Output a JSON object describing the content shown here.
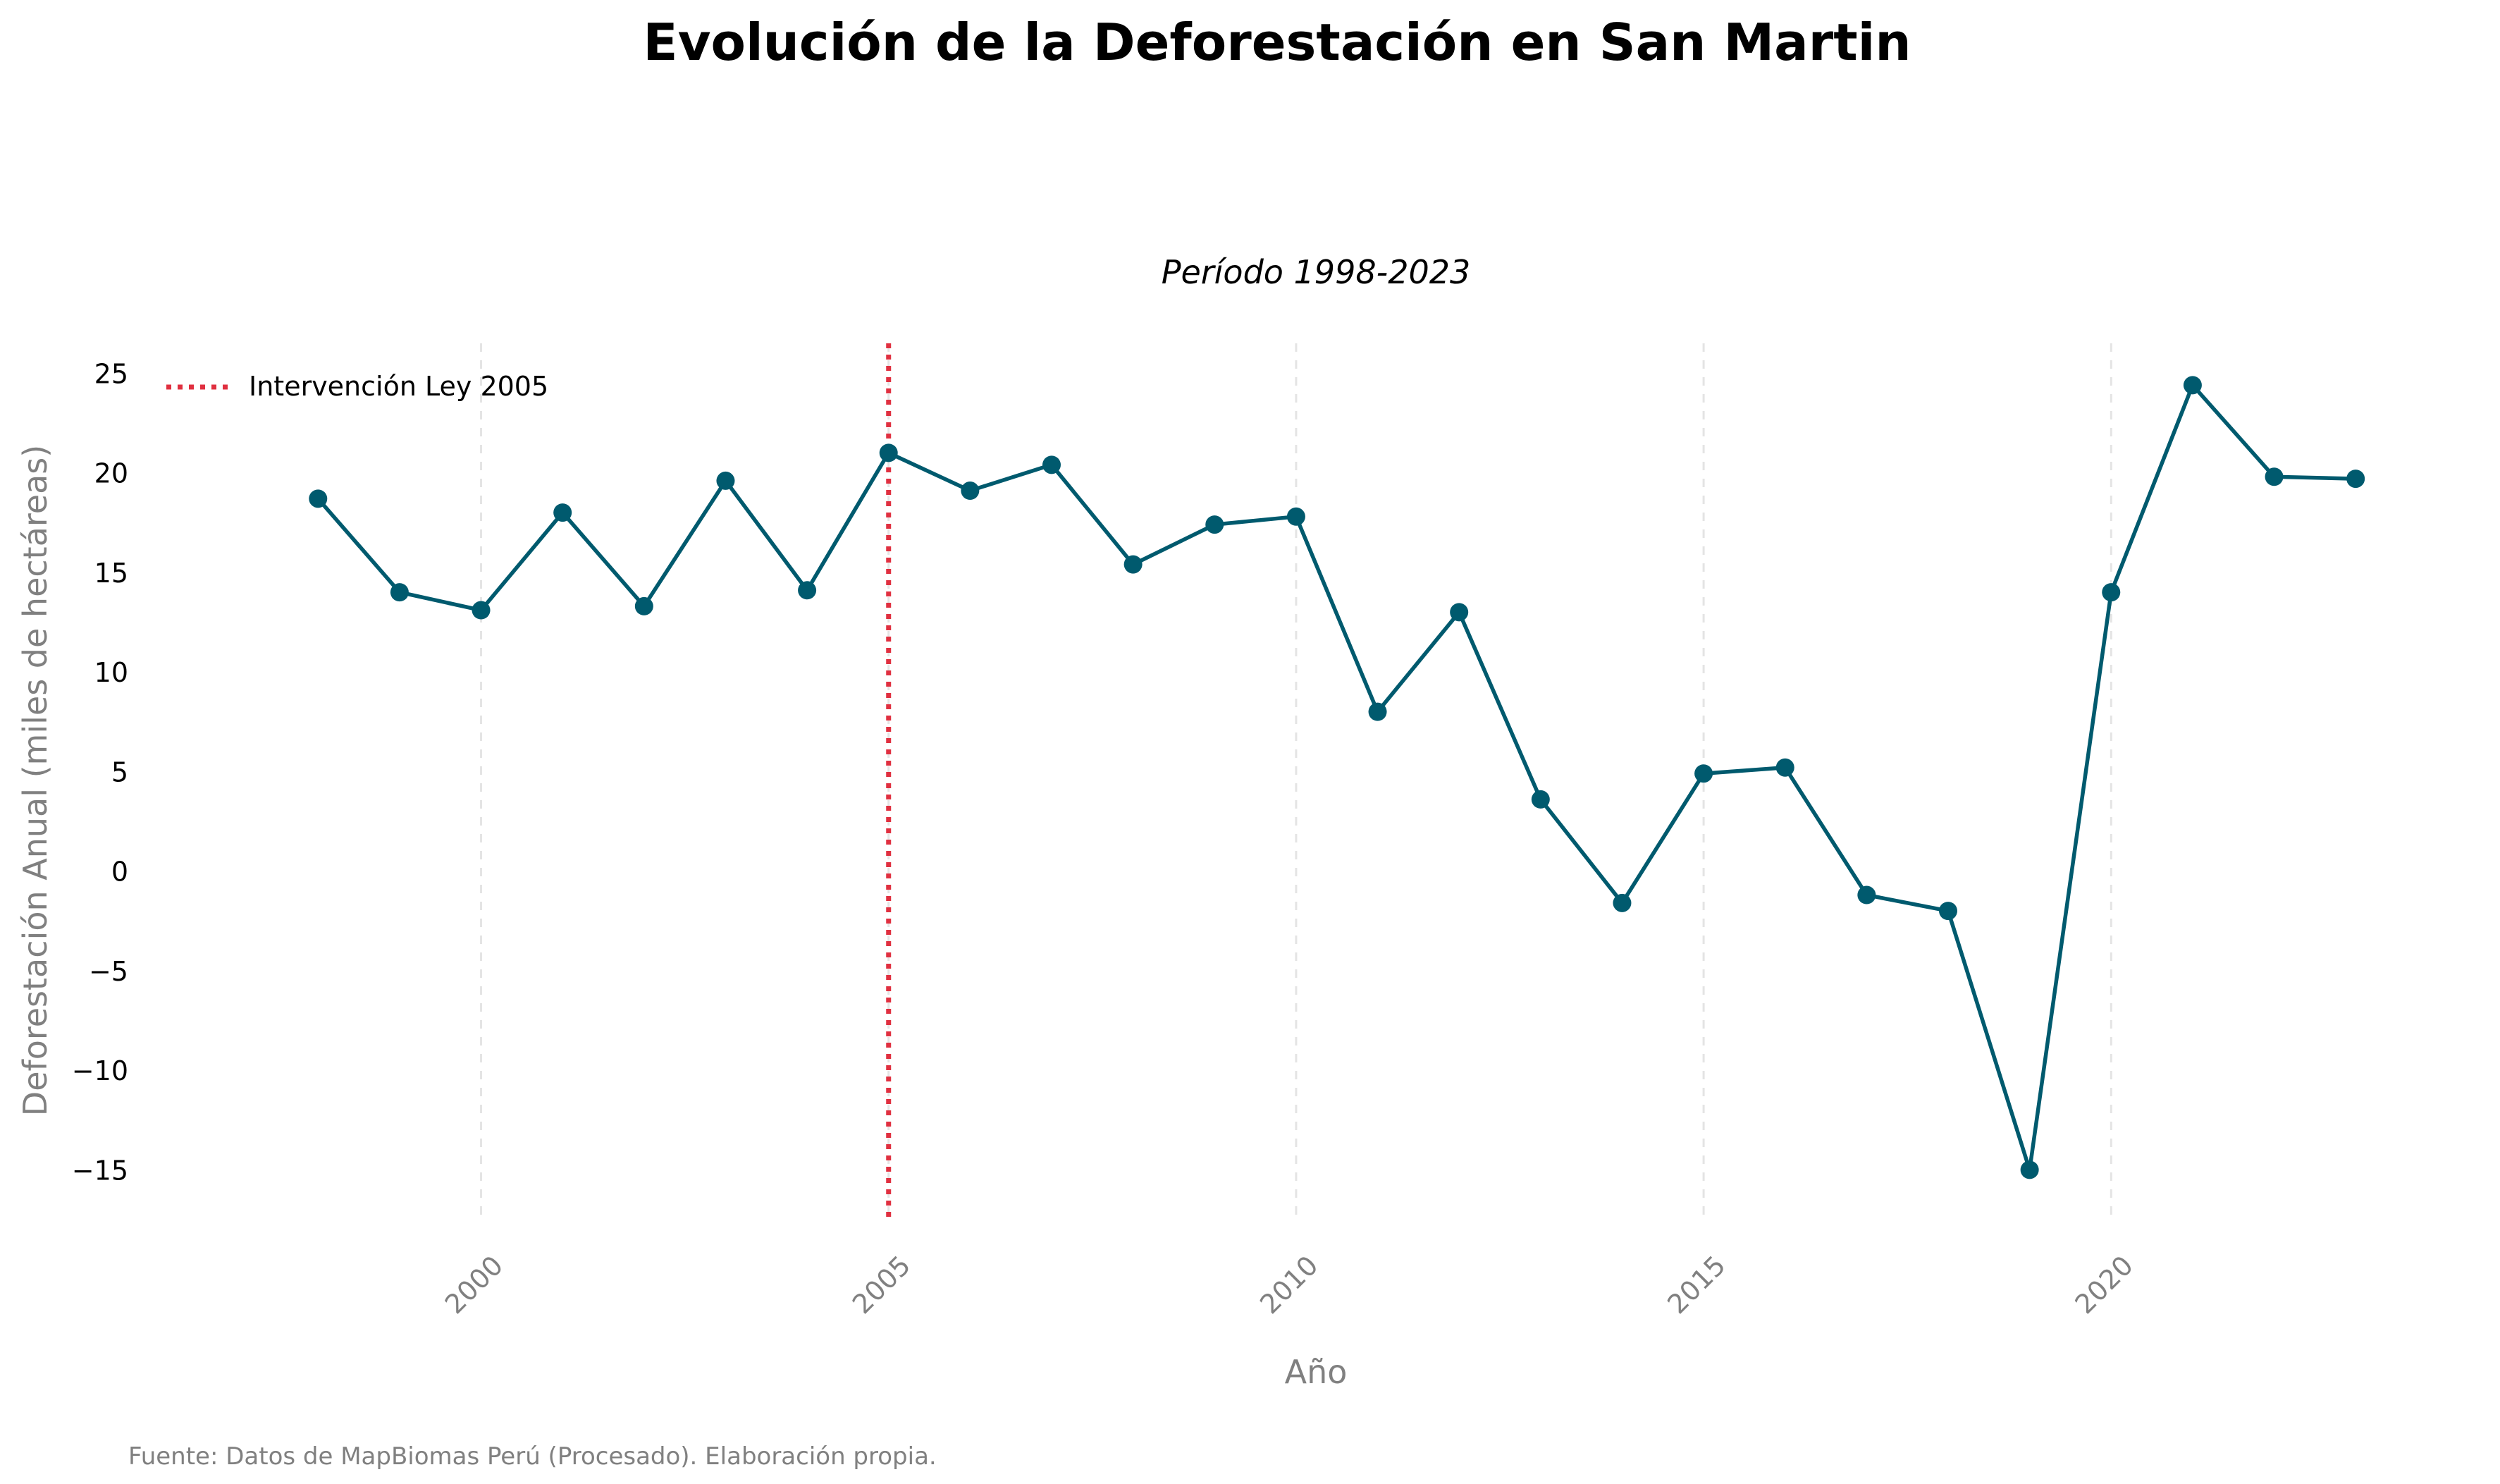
{
  "chart_data": {
    "type": "line",
    "title": "Evolución de la Deforestación en San Martin",
    "subtitle": "Período 1998-2023",
    "xlabel": "Año",
    "ylabel": "Deforestación Anual (miles de hectáreas)",
    "source_note": "Fuente: Datos de MapBiomas Perú (Procesado). Elaboración propia.",
    "xlim": [
      1996,
      2023.5
    ],
    "ylim": [
      -17.5,
      26.5
    ],
    "yticks": [
      -15,
      -10,
      -5,
      0,
      5,
      10,
      15,
      20,
      25
    ],
    "ytick_labels": [
      "−15",
      "−10",
      "−5",
      "0",
      "5",
      "10",
      "15",
      "20",
      "25"
    ],
    "xticks": [
      2000,
      2005,
      2010,
      2015,
      2020
    ],
    "xtick_labels": [
      "2000",
      "2005",
      "2010",
      "2015",
      "2020"
    ],
    "grid": "vertical dashed at x ticks",
    "legend_position": "top-left",
    "series": [
      {
        "color": "#005a6e",
        "x": [
          1998,
          1999,
          2000,
          2001,
          2002,
          2003,
          2004,
          2005,
          2006,
          2007,
          2008,
          2009,
          2010,
          2011,
          2012,
          2013,
          2014,
          2015,
          2016,
          2017,
          2018,
          2019,
          2020,
          2021,
          2022,
          2023
        ],
        "y": [
          18.7,
          14.0,
          13.1,
          18.0,
          13.3,
          19.6,
          14.1,
          21.0,
          19.1,
          20.4,
          15.4,
          17.4,
          17.8,
          8.0,
          13.0,
          3.6,
          -1.6,
          4.9,
          5.2,
          -1.2,
          -2.0,
          -15.0,
          14.0,
          24.4,
          19.8,
          19.7
        ]
      }
    ],
    "reference_lines": [
      {
        "type": "vertical",
        "x": 2005,
        "label": "Intervención Ley 2005",
        "color": "#e03040",
        "style": "dotted"
      }
    ]
  }
}
